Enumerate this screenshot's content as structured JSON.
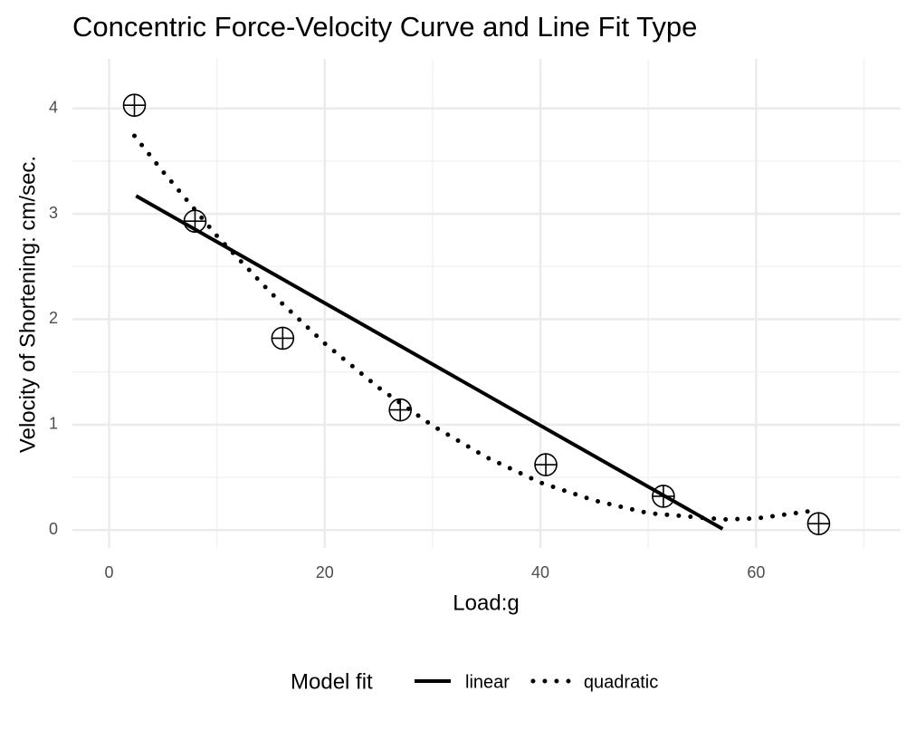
{
  "chart_data": {
    "type": "scatter",
    "title": "Concentric Force-Velocity Curve and Line Fit Type",
    "x_label": "Load:g",
    "y_label": "Velocity of Shortening: cm/sec.",
    "legend_title": "Model fit",
    "legend": "bottom",
    "grid": true,
    "xlim": [
      -3.4,
      73.4
    ],
    "ylim": [
      -0.17,
      4.47
    ],
    "xticks": [
      0,
      20,
      40,
      60
    ],
    "yticks": [
      0,
      1,
      2,
      3,
      4
    ],
    "x_minor_grid": [
      10,
      30,
      50,
      70
    ],
    "y_minor_grid": [
      0.5,
      1.5,
      2.5,
      3.5
    ],
    "series": [
      {
        "style": "points",
        "color": "#000000",
        "x": [
          2.35,
          7.97,
          16.1,
          27.0,
          40.5,
          51.4,
          65.8
        ],
        "values": [
          4.03,
          2.93,
          1.82,
          1.14,
          0.62,
          0.32,
          0.06
        ]
      },
      {
        "name": "linear",
        "style": "solid",
        "color": "#000000",
        "x": [
          2.5,
          56.9
        ],
        "values": [
          3.17,
          0.01
        ]
      },
      {
        "name": "quadratic",
        "style": "dotted",
        "color": "#000000",
        "x": [
          2.35,
          5,
          10,
          15,
          20,
          25,
          30,
          35,
          40,
          45,
          50,
          57,
          60,
          65.8
        ],
        "values": [
          3.74,
          3.4,
          2.79,
          2.25,
          1.77,
          1.35,
          0.99,
          0.69,
          0.45,
          0.28,
          0.16,
          0.1,
          0.11,
          0.19
        ]
      }
    ]
  }
}
